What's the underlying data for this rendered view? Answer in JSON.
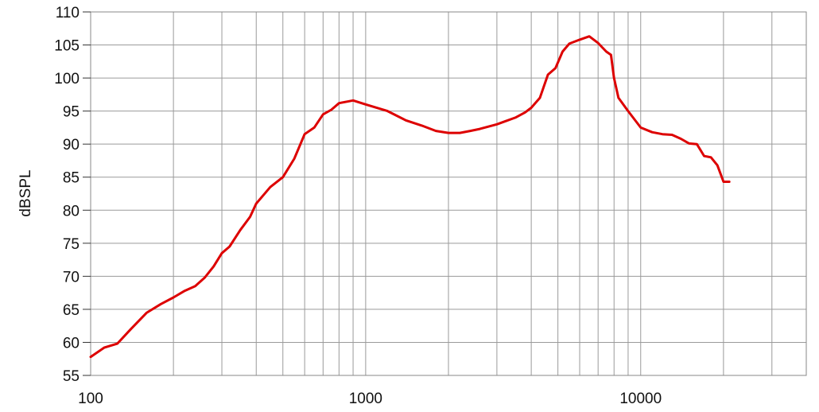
{
  "chart_data": {
    "type": "line",
    "title": "",
    "xlabel": "",
    "ylabel": "dBSPL",
    "x_scale": "log",
    "xlim": [
      100,
      40000
    ],
    "ylim": [
      55,
      110
    ],
    "grid": true,
    "legend": "none",
    "x_tick_labels": [
      {
        "value": 100,
        "label": "100"
      },
      {
        "value": 1000,
        "label": "1000"
      },
      {
        "value": 10000,
        "label": "10000"
      }
    ],
    "y_ticks": [
      {
        "value": 55,
        "label": "55"
      },
      {
        "value": 60,
        "label": "60"
      },
      {
        "value": 65,
        "label": "65"
      },
      {
        "value": 70,
        "label": "70"
      },
      {
        "value": 75,
        "label": "75"
      },
      {
        "value": 80,
        "label": "80"
      },
      {
        "value": 85,
        "label": "85"
      },
      {
        "value": 90,
        "label": "90"
      },
      {
        "value": 95,
        "label": "95"
      },
      {
        "value": 100,
        "label": "100"
      },
      {
        "value": 105,
        "label": "105"
      },
      {
        "value": 110,
        "label": "110"
      }
    ],
    "series": [
      {
        "color": "#dd0000",
        "points": [
          [
            100,
            57.8
          ],
          [
            112,
            59.2
          ],
          [
            125,
            59.8
          ],
          [
            140,
            62.0
          ],
          [
            160,
            64.5
          ],
          [
            180,
            65.8
          ],
          [
            200,
            66.8
          ],
          [
            220,
            67.8
          ],
          [
            240,
            68.5
          ],
          [
            260,
            69.8
          ],
          [
            280,
            71.5
          ],
          [
            300,
            73.5
          ],
          [
            320,
            74.5
          ],
          [
            350,
            77.0
          ],
          [
            380,
            79.0
          ],
          [
            400,
            81.0
          ],
          [
            450,
            83.5
          ],
          [
            500,
            85.0
          ],
          [
            550,
            87.8
          ],
          [
            600,
            91.5
          ],
          [
            650,
            92.5
          ],
          [
            700,
            94.5
          ],
          [
            750,
            95.2
          ],
          [
            800,
            96.2
          ],
          [
            900,
            96.6
          ],
          [
            1000,
            96.0
          ],
          [
            1200,
            95.0
          ],
          [
            1400,
            93.6
          ],
          [
            1600,
            92.8
          ],
          [
            1800,
            92.0
          ],
          [
            2000,
            91.7
          ],
          [
            2200,
            91.7
          ],
          [
            2400,
            92.0
          ],
          [
            2600,
            92.3
          ],
          [
            3000,
            93.0
          ],
          [
            3500,
            94.0
          ],
          [
            3800,
            94.8
          ],
          [
            4000,
            95.5
          ],
          [
            4300,
            97.0
          ],
          [
            4600,
            100.5
          ],
          [
            4900,
            101.5
          ],
          [
            5200,
            104.0
          ],
          [
            5500,
            105.2
          ],
          [
            6000,
            105.8
          ],
          [
            6500,
            106.3
          ],
          [
            7000,
            105.3
          ],
          [
            7500,
            104.0
          ],
          [
            7800,
            103.5
          ],
          [
            8000,
            100.0
          ],
          [
            8300,
            97.0
          ],
          [
            9000,
            95.0
          ],
          [
            10000,
            92.5
          ],
          [
            11000,
            91.8
          ],
          [
            12000,
            91.5
          ],
          [
            13000,
            91.4
          ],
          [
            14000,
            90.8
          ],
          [
            15000,
            90.1
          ],
          [
            16000,
            90.0
          ],
          [
            17000,
            88.2
          ],
          [
            18000,
            88.0
          ],
          [
            19000,
            86.8
          ],
          [
            20000,
            84.3
          ],
          [
            21000,
            84.3
          ]
        ]
      }
    ]
  }
}
